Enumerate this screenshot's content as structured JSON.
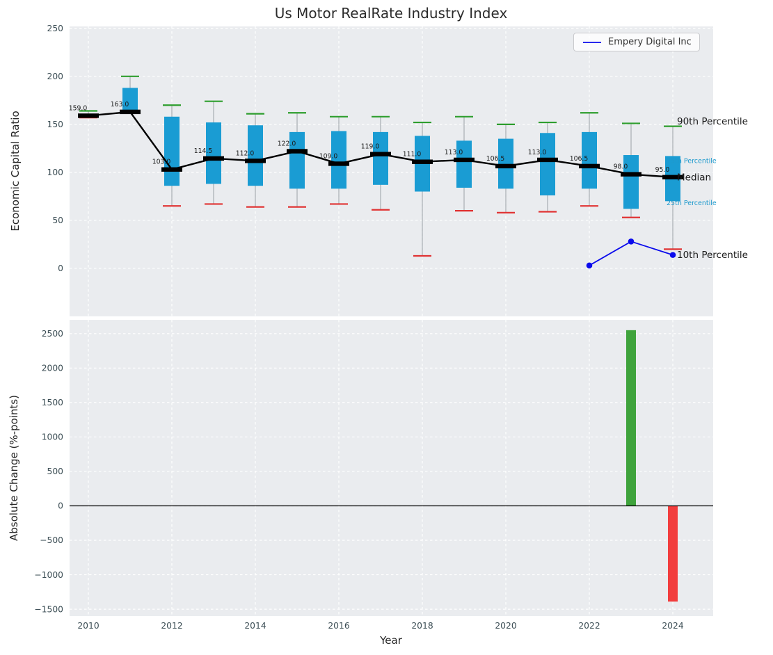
{
  "chart_data": [
    {
      "type": "boxplot",
      "title": "Us Motor RealRate Industry Index",
      "ylabel": "Economic Capital Ratio",
      "ylim": [
        -50,
        252
      ],
      "yticks": [
        0,
        50,
        100,
        150,
        200,
        250
      ],
      "grid": true,
      "legend": {
        "position": "upper right",
        "entries": [
          {
            "label": "Empery Digital Inc",
            "color": "#0b0bec"
          }
        ]
      },
      "style": {
        "box_color": "#1a9cd3",
        "p90_color": "#2e9e2e",
        "p10_color": "#e03333",
        "median_color": "#000000",
        "whisker_color": "#9aa0a6"
      },
      "boxes": [
        {
          "year": 2010,
          "p10": 157,
          "q1": 158,
          "median": 159.0,
          "q3": 161,
          "p90": 164,
          "label": "159.0"
        },
        {
          "year": 2011,
          "p10": 162,
          "q1": 163,
          "median": 163.0,
          "q3": 188,
          "p90": 200,
          "label": "163.0"
        },
        {
          "year": 2012,
          "p10": 65,
          "q1": 86,
          "median": 103.0,
          "q3": 158,
          "p90": 170,
          "label": "103.0"
        },
        {
          "year": 2013,
          "p10": 67,
          "q1": 88,
          "median": 114.5,
          "q3": 152,
          "p90": 174,
          "label": "114.5"
        },
        {
          "year": 2014,
          "p10": 64,
          "q1": 86,
          "median": 112.0,
          "q3": 149,
          "p90": 161,
          "label": "112.0"
        },
        {
          "year": 2015,
          "p10": 64,
          "q1": 83,
          "median": 122.0,
          "q3": 142,
          "p90": 162,
          "label": "122.0"
        },
        {
          "year": 2016,
          "p10": 67,
          "q1": 83,
          "median": 109.0,
          "q3": 143,
          "p90": 158,
          "label": "109.0"
        },
        {
          "year": 2017,
          "p10": 61,
          "q1": 87,
          "median": 119.0,
          "q3": 142,
          "p90": 158,
          "label": "119.0"
        },
        {
          "year": 2018,
          "p10": 13,
          "q1": 80,
          "median": 111.0,
          "q3": 138,
          "p90": 152,
          "label": "111.0"
        },
        {
          "year": 2019,
          "p10": 60,
          "q1": 84,
          "median": 113.0,
          "q3": 133,
          "p90": 158,
          "label": "113.0"
        },
        {
          "year": 2020,
          "p10": 58,
          "q1": 83,
          "median": 106.5,
          "q3": 135,
          "p90": 150,
          "label": "106.5"
        },
        {
          "year": 2021,
          "p10": 59,
          "q1": 76,
          "median": 113.0,
          "q3": 141,
          "p90": 152,
          "label": "113.0"
        },
        {
          "year": 2022,
          "p10": 65,
          "q1": 83,
          "median": 106.5,
          "q3": 142,
          "p90": 162,
          "label": "106.5"
        },
        {
          "year": 2023,
          "p10": 53,
          "q1": 62,
          "median": 98.0,
          "q3": 118,
          "p90": 151,
          "label": "98.0"
        },
        {
          "year": 2024,
          "p10": 20,
          "q1": 70,
          "median": 95.0,
          "q3": 117,
          "p90": 148,
          "label": "95.0"
        }
      ],
      "line_series": {
        "name": "Empery Digital Inc",
        "color": "#0b0bec",
        "points": [
          [
            2022,
            3
          ],
          [
            2023,
            28
          ],
          [
            2024,
            14
          ]
        ]
      },
      "annotations": [
        {
          "label": "90th Percentile",
          "value": 153,
          "style": "major"
        },
        {
          "label": "75th Percentile",
          "value": 112,
          "style": "minor"
        },
        {
          "label": "Median",
          "value": 95,
          "style": "major"
        },
        {
          "label": "25th Percentile",
          "value": 68,
          "style": "minor"
        },
        {
          "label": "10th Percentile",
          "value": 14,
          "style": "major"
        }
      ]
    },
    {
      "type": "bar",
      "ylabel": "Absolute Change (%-points)",
      "xlabel": "Year",
      "ylim": [
        -1600,
        2700
      ],
      "yticks": [
        2500,
        2000,
        1500,
        1000,
        500,
        0,
        -500,
        -1000,
        -1500
      ],
      "xticks": [
        2010,
        2012,
        2014,
        2016,
        2018,
        2020,
        2022,
        2024
      ],
      "bars": [
        {
          "year": 2023,
          "value": 2550
        },
        {
          "year": 2024,
          "value": -1390
        }
      ],
      "bar_colors": {
        "positive": "#3fa33c",
        "negative": "#f23d3d"
      }
    }
  ]
}
